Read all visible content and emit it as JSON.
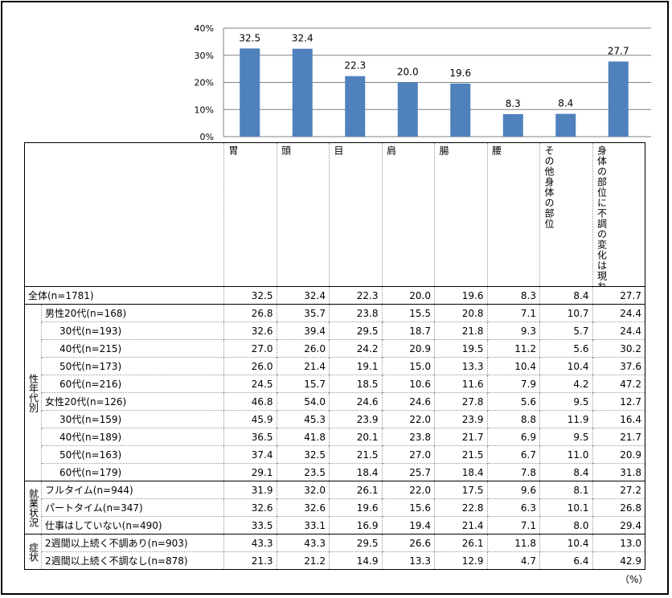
{
  "chart_data": {
    "type": "bar",
    "categories": [
      "胃",
      "頭",
      "目",
      "肩",
      "腸",
      "腰",
      "その他身体の部位",
      "身体の部位に不調の変化は現れない"
    ],
    "values": [
      32.5,
      32.4,
      22.3,
      20.0,
      19.6,
      8.3,
      8.4,
      27.7
    ],
    "value_labels": [
      "32.5",
      "32.4",
      "22.3",
      "20.0",
      "19.6",
      "8.3",
      "8.4",
      "27.7"
    ],
    "y_ticks": [
      "40%",
      "30%",
      "20%",
      "10%",
      "0%"
    ],
    "ylim": [
      0,
      40
    ],
    "grid": true,
    "bar_color": "#4f81bd"
  },
  "table": {
    "col_headers": [
      "胃",
      "頭",
      "目",
      "肩",
      "腸",
      "腰",
      "その他身体の部位",
      "身体の部位に不調の変化は現れない"
    ],
    "unit": "（%）",
    "total": {
      "label": "全体(n=1781)",
      "values": [
        "32.5",
        "32.4",
        "22.3",
        "20.0",
        "19.6",
        "8.3",
        "8.4",
        "27.7"
      ]
    },
    "groups": [
      {
        "group_label": "性年代別",
        "rows": [
          {
            "label": "男性20代(n=168)",
            "values": [
              "26.8",
              "35.7",
              "23.8",
              "15.5",
              "20.8",
              "7.1",
              "10.7",
              "24.4"
            ]
          },
          {
            "label": "30代(n=193)",
            "values": [
              "32.6",
              "39.4",
              "29.5",
              "18.7",
              "21.8",
              "9.3",
              "5.7",
              "24.4"
            ]
          },
          {
            "label": "40代(n=215)",
            "values": [
              "27.0",
              "26.0",
              "24.2",
              "20.9",
              "19.5",
              "11.2",
              "5.6",
              "30.2"
            ]
          },
          {
            "label": "50代(n=173)",
            "values": [
              "26.0",
              "21.4",
              "19.1",
              "15.0",
              "13.3",
              "10.4",
              "10.4",
              "37.6"
            ]
          },
          {
            "label": "60代(n=216)",
            "values": [
              "24.5",
              "15.7",
              "18.5",
              "10.6",
              "11.6",
              "7.9",
              "4.2",
              "47.2"
            ]
          },
          {
            "label": "女性20代(n=126)",
            "values": [
              "46.8",
              "54.0",
              "24.6",
              "24.6",
              "27.8",
              "5.6",
              "9.5",
              "12.7"
            ]
          },
          {
            "label": "30代(n=159)",
            "values": [
              "45.9",
              "45.3",
              "23.9",
              "22.0",
              "23.9",
              "8.8",
              "11.9",
              "16.4"
            ]
          },
          {
            "label": "40代(n=189)",
            "values": [
              "36.5",
              "41.8",
              "20.1",
              "23.8",
              "21.7",
              "6.9",
              "9.5",
              "21.7"
            ]
          },
          {
            "label": "50代(n=163)",
            "values": [
              "37.4",
              "32.5",
              "21.5",
              "27.0",
              "21.5",
              "6.7",
              "11.0",
              "20.9"
            ]
          },
          {
            "label": "60代(n=179)",
            "values": [
              "29.1",
              "23.5",
              "18.4",
              "25.7",
              "18.4",
              "7.8",
              "8.4",
              "31.8"
            ]
          }
        ]
      },
      {
        "group_label": "就業状況",
        "rows": [
          {
            "label": "フルタイム(n=944)",
            "values": [
              "31.9",
              "32.0",
              "26.1",
              "22.0",
              "17.5",
              "9.6",
              "8.1",
              "27.2"
            ]
          },
          {
            "label": "パートタイム(n=347)",
            "values": [
              "32.6",
              "32.6",
              "19.6",
              "15.6",
              "22.8",
              "6.3",
              "10.1",
              "26.8"
            ]
          },
          {
            "label": "仕事はしていない(n=490)",
            "values": [
              "33.5",
              "33.1",
              "16.9",
              "19.4",
              "21.4",
              "7.1",
              "8.0",
              "29.4"
            ]
          }
        ]
      },
      {
        "group_label": "症状",
        "rows": [
          {
            "label": "2週間以上続く不調あり(n=903)",
            "values": [
              "43.3",
              "43.3",
              "29.5",
              "26.6",
              "26.1",
              "11.8",
              "10.4",
              "13.0"
            ]
          },
          {
            "label": "2週間以上続く不調なし(n=878)",
            "values": [
              "21.3",
              "21.2",
              "14.9",
              "13.3",
              "12.9",
              "4.7",
              "6.4",
              "42.9"
            ]
          }
        ]
      }
    ]
  }
}
